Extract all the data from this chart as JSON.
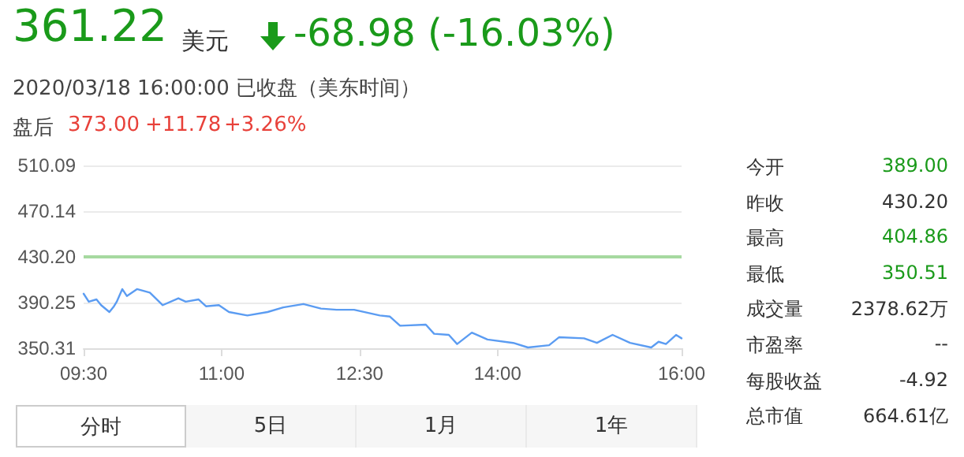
{
  "chart_data": {
    "type": "line",
    "title": "361.22",
    "annotations": [
      "美元",
      "-68.98 (-16.03%)",
      "2020/03/18 16:00:00 已收盘（美东时间）",
      "盘后",
      "373.00",
      "+11.78",
      "+3.26%",
      "今开",
      "389.00",
      "昨收",
      "430.20",
      "最高",
      "404.86",
      "最低",
      "350.51",
      "成交量",
      "2378.62万",
      "市盈率",
      "--",
      "每股收益",
      "-4.92",
      "总市值",
      "664.61亿",
      "分时",
      "5日",
      "1月",
      "1年"
    ],
    "x": [
      9.5,
      9.556,
      9.64,
      9.69,
      9.78,
      9.83,
      9.86,
      9.92,
      9.97,
      10.08,
      10.22,
      10.36,
      10.53,
      10.61,
      10.75,
      10.83,
      10.97,
      11.08,
      11.28,
      11.5,
      11.67,
      11.89,
      12.08,
      12.25,
      12.44,
      12.72,
      12.83,
      12.94,
      13.22,
      13.31,
      13.47,
      13.56,
      13.72,
      13.89,
      14.17,
      14.33,
      14.56,
      14.67,
      14.94,
      15.08,
      15.25,
      15.44,
      15.67,
      15.75,
      15.83,
      15.94,
      16.0
    ],
    "series": [
      {
        "color": "#5b9cf2",
        "values": [
          398,
          391,
          393,
          388,
          382,
          387,
          391,
          402,
          396,
          402,
          399,
          388,
          394,
          391,
          393,
          387,
          388,
          382,
          379,
          382,
          386,
          389,
          385,
          384,
          384,
          379,
          378,
          370,
          371,
          363,
          362,
          354,
          364,
          358,
          355,
          351,
          353,
          360,
          359,
          355,
          362,
          355,
          351,
          356,
          354,
          362,
          359
        ]
      }
    ],
    "xlim": [
      9.5,
      16
    ],
    "xticks": [
      {
        "value": 9.5,
        "label": "09:30"
      },
      {
        "value": 11,
        "label": "11:00"
      },
      {
        "value": 12.5,
        "label": "12:30"
      },
      {
        "value": 14,
        "label": "14:00"
      },
      {
        "value": 16,
        "label": "16:00"
      }
    ],
    "ylim": [
      350.31,
      510.09
    ],
    "yticks": [
      350.31,
      390.25,
      {
        "value": 430.2,
        "label": "430.20"
      },
      470.14,
      510.09
    ],
    "ref_lines": [
      {
        "axis": "y",
        "value": 430.2,
        "color": "#a6d9a0"
      }
    ],
    "grid": "y",
    "marker": "none",
    "line_style": "solid"
  }
}
